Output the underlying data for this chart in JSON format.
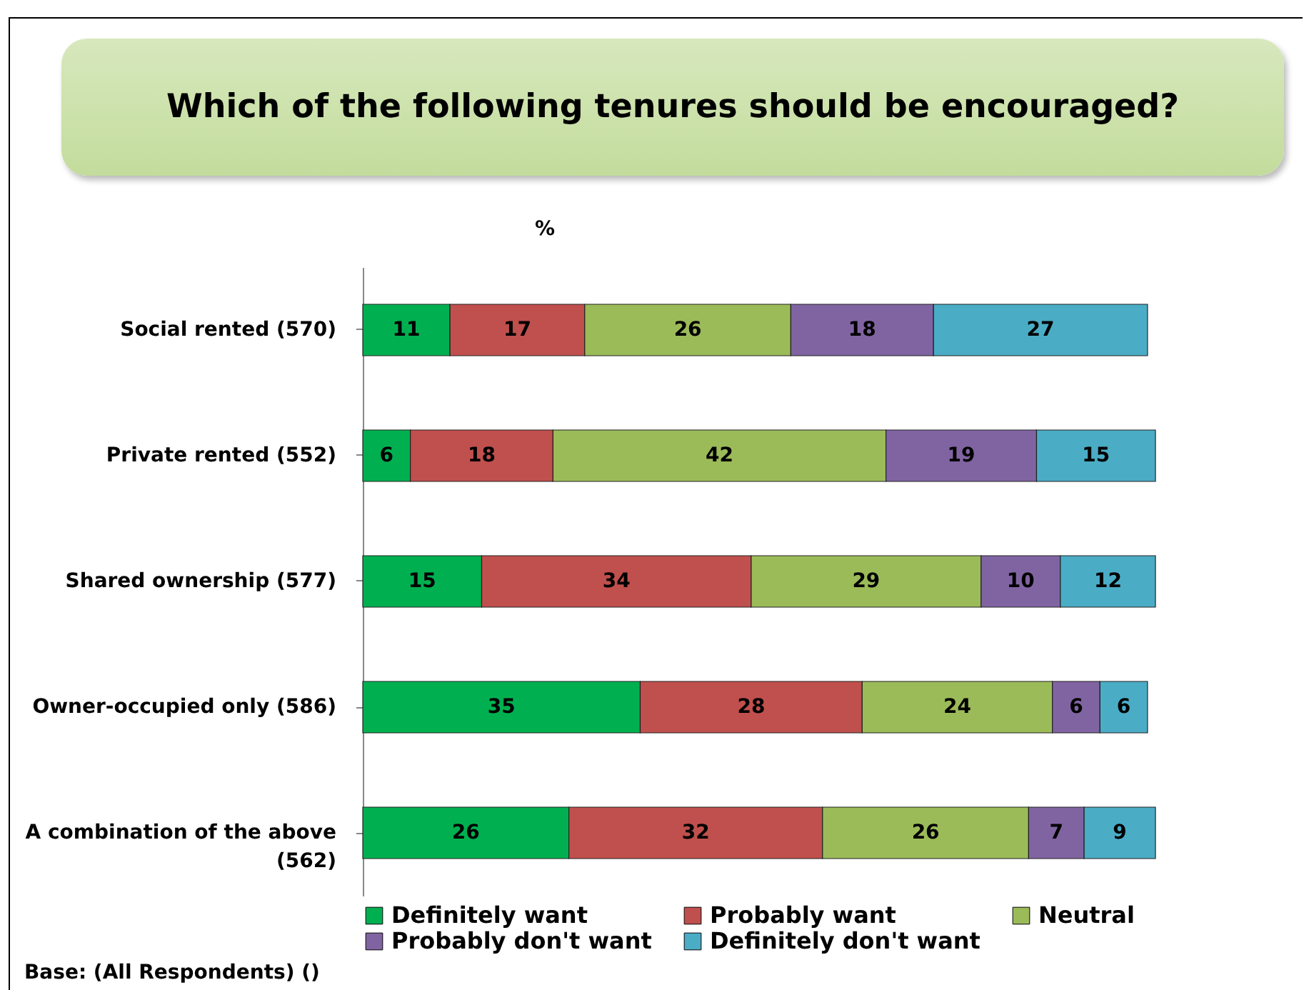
{
  "chart_data": {
    "type": "bar",
    "orientation": "horizontal",
    "stacked": true,
    "title": "Which of the following tenures should be encouraged?",
    "xlabel": "%",
    "tick_labels": "y",
    "data_labels": true,
    "legend": "bottom",
    "grid": false,
    "categories": [
      "Social rented (570)",
      "Private rented (552)",
      "Shared ownership (577)",
      "Owner-occupied only (586)",
      "A combination of the above (562)"
    ],
    "series": [
      {
        "name": "Definitely want",
        "color": "#00b050",
        "values": [
          11,
          6,
          15,
          35,
          26
        ]
      },
      {
        "name": "Probably want",
        "color": "#c0504d",
        "values": [
          17,
          18,
          34,
          28,
          32
        ]
      },
      {
        "name": "Neutral",
        "color": "#9bbb59",
        "values": [
          26,
          42,
          29,
          24,
          26
        ]
      },
      {
        "name": "Probably don't want",
        "color": "#8064a2",
        "values": [
          18,
          19,
          10,
          6,
          7
        ]
      },
      {
        "name": "Definitely don't want",
        "color": "#4bacc6",
        "values": [
          27,
          15,
          12,
          6,
          9
        ]
      }
    ],
    "annotations": [
      "Base: (All Respondents) ()"
    ]
  }
}
